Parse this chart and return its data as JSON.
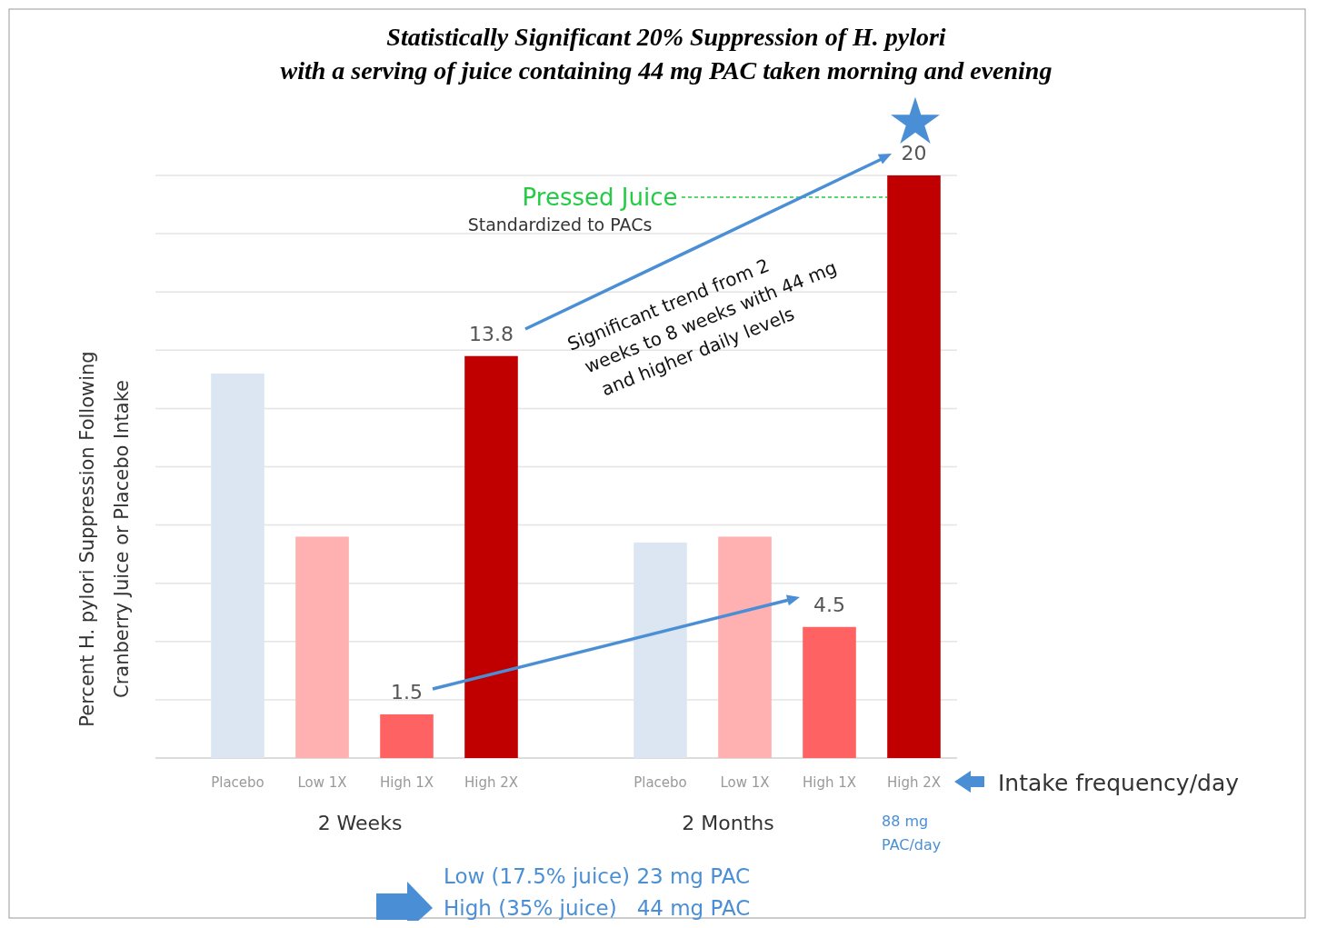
{
  "chart_data": {
    "type": "bar",
    "title": "Statistically Significant 20% Suppression of H. pylori\nwith a serving of juice containing 44 mg PAC taken morning and evening",
    "ylabel": "Percent H. pylori Suppression Following\nCranberry Juice or Placebo Intake",
    "categories": [
      "Placebo",
      "Low 1X",
      "High 1X",
      "High 2X",
      null,
      "Placebo",
      "Low 1X",
      "High 1X",
      "High 2X"
    ],
    "values": [
      13.2,
      7.6,
      1.5,
      13.8,
      null,
      7.4,
      7.6,
      4.5,
      20
    ],
    "colors": [
      "#dce6f2",
      "#ffb0b0",
      "#ff6262",
      "#c00000",
      null,
      "#dce6f2",
      "#ffb0b0",
      "#ff6262",
      "#c00000"
    ],
    "value_labels": [
      null,
      null,
      "1.5",
      "13.8",
      null,
      null,
      null,
      "4.5",
      "20"
    ],
    "ylim": [
      0,
      20
    ],
    "yticks": [
      {
        "value": 0,
        "label": null
      },
      {
        "value": 2,
        "label": null
      },
      {
        "value": 4,
        "label": null
      },
      {
        "value": 6,
        "label": null
      },
      {
        "value": 8,
        "label": null
      },
      {
        "value": 10,
        "label": null
      },
      {
        "value": 12,
        "label": null
      },
      {
        "value": 14,
        "label": null
      },
      {
        "value": 16,
        "label": null
      },
      {
        "value": 18,
        "label": null
      },
      {
        "value": 20,
        "label": null
      }
    ],
    "tick_labels": "x",
    "grid": "y",
    "annotations": [
      "Pressed Juice",
      "Standardized to PACs",
      "Significant trend from 2\nweeks to 8 weeks with 44 mg\nand higher daily levels",
      "2 Weeks",
      "2 Months",
      "Intake frequency/day",
      "88 mg\nPAC/day",
      "Low (17.5% juice) 23 mg PAC",
      "High (35% juice)   44 mg PAC"
    ]
  }
}
